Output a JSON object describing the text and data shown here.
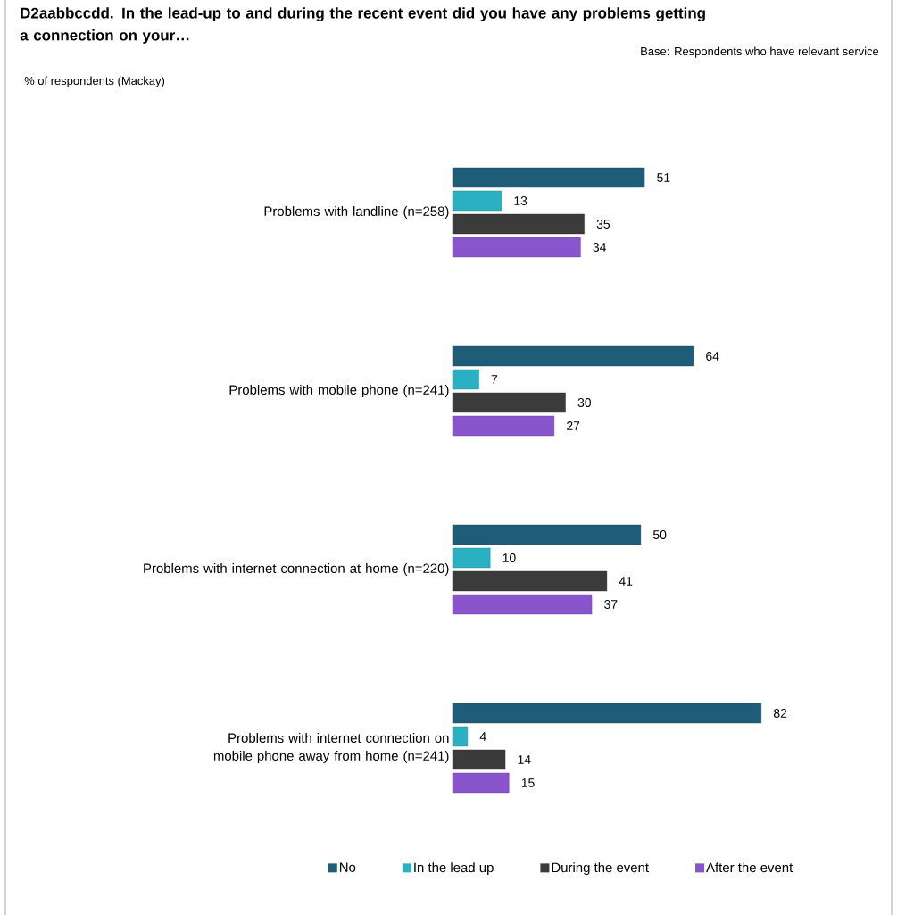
{
  "chart_data": {
    "type": "bar",
    "orientation": "horizontal",
    "title": "D2aabbccdd. In the lead-up to and during the recent event did you have any problems getting a connection on your…",
    "subtitle": "Base: Respondents who have relevant service",
    "annotations": [
      "% of respondents (Mackay)"
    ],
    "categories": [
      "Problems with landline (n=258)",
      "Problems with mobile phone (n=241)",
      "Problems with internet connection at home (n=220)",
      "Problems with internet connection on mobile phone away from home (n=241)"
    ],
    "series": [
      {
        "name": "No",
        "color": "#1e5c78",
        "values": [
          51,
          64,
          50,
          82
        ]
      },
      {
        "name": "In the lead up",
        "color": "#2ab0c0",
        "values": [
          13,
          7,
          10,
          4
        ]
      },
      {
        "name": "During the event",
        "color": "#3b3b3b",
        "values": [
          35,
          30,
          41,
          14
        ]
      },
      {
        "name": "After the event",
        "color": "#8855cc",
        "values": [
          34,
          27,
          37,
          15
        ]
      }
    ],
    "data_labels": true,
    "legend": "bottom"
  }
}
